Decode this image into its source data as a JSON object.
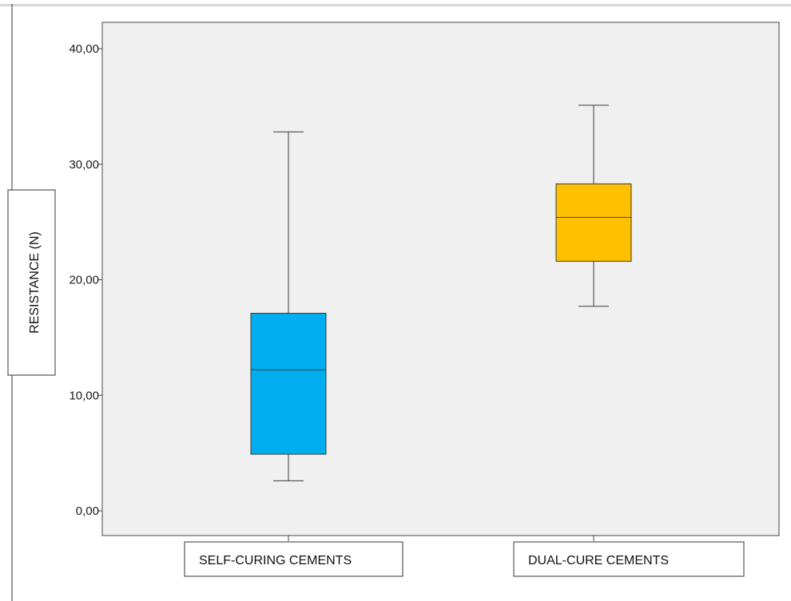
{
  "chart_data": {
    "type": "boxplot",
    "ylabel": "RESISTANCE (N)",
    "ylim": [
      0,
      42
    ],
    "yticks": [
      0,
      10,
      20,
      30,
      40
    ],
    "ytick_labels": [
      "0,00",
      "10,00",
      "20,00",
      "30,00",
      "40,00"
    ],
    "grid": false,
    "background_color": "#f0f0f0",
    "categories": [
      "SELF-CURING CEMENTS",
      "DUAL-CURE CEMENTS"
    ],
    "series": [
      {
        "category": "SELF-CURING CEMENTS",
        "color": "#00aeef",
        "min": 2.6,
        "q1": 4.9,
        "median": 12.2,
        "q3": 17.1,
        "max": 32.8
      },
      {
        "category": "DUAL-CURE CEMENTS",
        "color": "#ffc000",
        "min": 17.7,
        "q1": 21.6,
        "median": 25.4,
        "q3": 28.3,
        "max": 35.1
      }
    ]
  }
}
